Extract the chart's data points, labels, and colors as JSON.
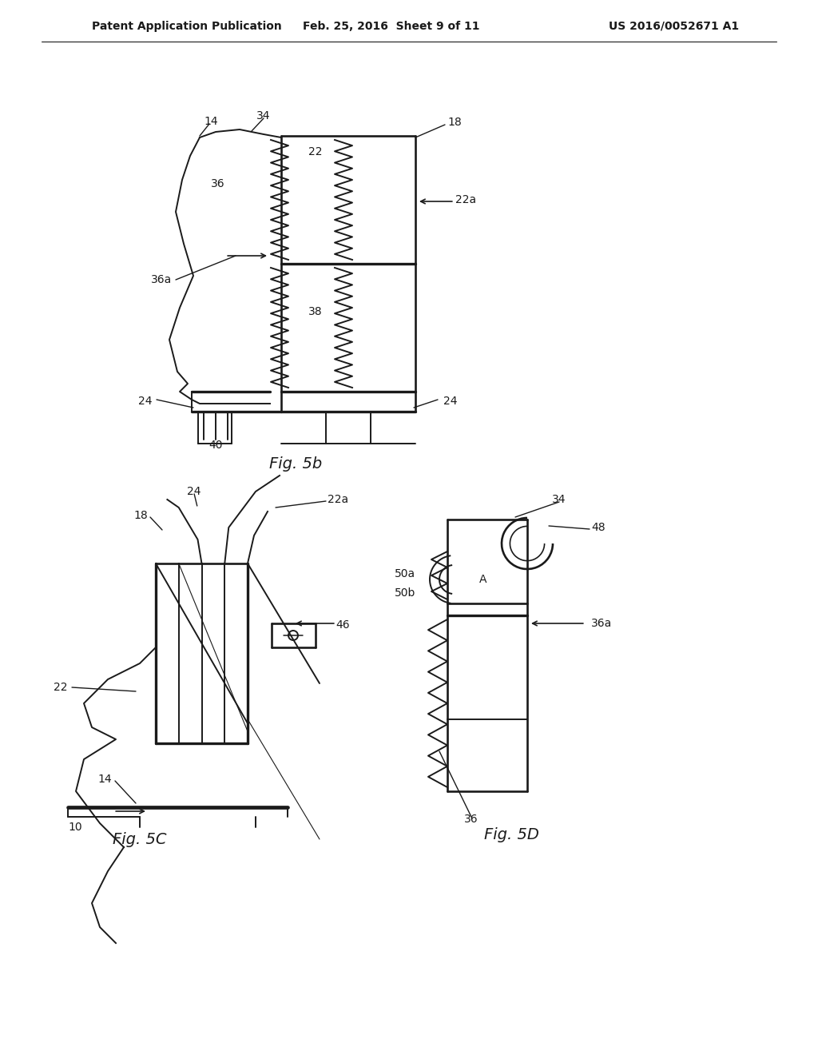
{
  "bg_color": "#ffffff",
  "header_left": "Patent Application Publication",
  "header_center": "Feb. 25, 2016  Sheet 9 of 11",
  "header_right": "US 2016/0052671 A1",
  "fig5b_label": "Fig. 5b",
  "fig5c_label": "Fig. 5C",
  "fig5d_label": "Fig. 5D",
  "lc": "#1a1a1a",
  "lw": 1.4,
  "fs": 10
}
